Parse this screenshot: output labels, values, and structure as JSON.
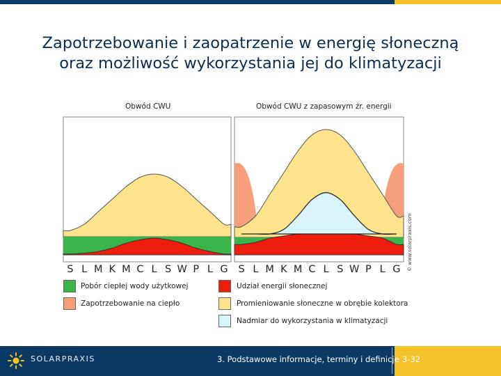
{
  "slide": {
    "title_line1": "Zapotrzebowanie i zaopatrzenie w energię słoneczną",
    "title_line2": "oraz możliwość wykorzystania jej do klimatyzacji",
    "copyright": "© www.solarpraxis.com"
  },
  "footer": {
    "brand": "SOLARPRAXIS",
    "section": "3. Podstawowe informacje, terminy i definicje",
    "page": "3-32"
  },
  "colors": {
    "blue_dark": "#0a3a64",
    "accent_yellow": "#f6c22a",
    "green": "#3bb54a",
    "red": "#ee1c0b",
    "orange": "#f5a07a",
    "yellow_light": "#fde38c",
    "cyan_light": "#d9f4f9"
  },
  "legend": [
    {
      "label": "Pobór ciepłej wody użytkowej",
      "color": "#3bb54a"
    },
    {
      "label": "Udział energii słonecznej",
      "color": "#ee1c0b"
    },
    {
      "label": "Zapotrzebowanie na ciepło",
      "color": "#f5a07a"
    },
    {
      "label": "Promieniowanie słoneczne w obrębie kolektora",
      "color": "#fde38c"
    },
    {
      "label": "Nadmiar do wykorzystania w klimatyzacji",
      "color": "#d9f4f9"
    }
  ],
  "chart_data": [
    {
      "type": "area",
      "title": "Obwód CWU",
      "categories": [
        "S",
        "L",
        "M",
        "K",
        "M",
        "C",
        "L",
        "S",
        "W",
        "P",
        "L",
        "G"
      ],
      "series": [
        {
          "name": "Pobór ciepłej wody użytkowej",
          "values": [
            1.0,
            1.0,
            1.0,
            1.0,
            1.0,
            1.0,
            1.0,
            1.0,
            1.0,
            1.0,
            1.0,
            1.0
          ]
        },
        {
          "name": "Promieniowanie słoneczne w obrębie kolektora",
          "values": [
            0.1,
            0.2,
            0.4,
            0.6,
            0.8,
            0.95,
            1.0,
            0.95,
            0.8,
            0.6,
            0.4,
            0.2
          ]
        },
        {
          "name": "Udział energii słonecznej",
          "values": [
            0.05,
            0.1,
            0.2,
            0.4,
            0.7,
            0.9,
            1.0,
            0.9,
            0.7,
            0.4,
            0.2,
            0.05
          ]
        }
      ]
    },
    {
      "type": "area",
      "title": "Obwód CWU z zapasowym źr. energii",
      "categories": [
        "S",
        "L",
        "M",
        "K",
        "M",
        "C",
        "L",
        "S",
        "W",
        "P",
        "L",
        "G"
      ],
      "series": [
        {
          "name": "Zapotrzebowanie na ciepło",
          "values": [
            1.0,
            0.9,
            0.6,
            0.3,
            0.1,
            0.0,
            0.0,
            0.0,
            0.1,
            0.3,
            0.6,
            1.0
          ]
        },
        {
          "name": "Promieniowanie słoneczne w obrębie kolektora",
          "values": [
            0.1,
            0.2,
            0.4,
            0.6,
            0.8,
            0.95,
            1.0,
            0.95,
            0.8,
            0.6,
            0.4,
            0.2
          ]
        },
        {
          "name": "Pobór ciepłej wody użytkowej",
          "values": [
            1.0,
            1.0,
            1.0,
            1.0,
            1.0,
            1.0,
            1.0,
            1.0,
            1.0,
            1.0,
            1.0,
            1.0
          ]
        },
        {
          "name": "Udział energii słonecznej",
          "values": [
            0.5,
            0.6,
            0.8,
            0.9,
            1.0,
            1.0,
            1.0,
            1.0,
            1.0,
            0.9,
            0.8,
            0.5
          ]
        },
        {
          "name": "Nadmiar do wykorzystania w klimatyzacji",
          "values": [
            0.0,
            0.0,
            0.0,
            0.1,
            0.4,
            0.75,
            0.9,
            0.75,
            0.4,
            0.1,
            0.0,
            0.0
          ]
        }
      ]
    }
  ]
}
